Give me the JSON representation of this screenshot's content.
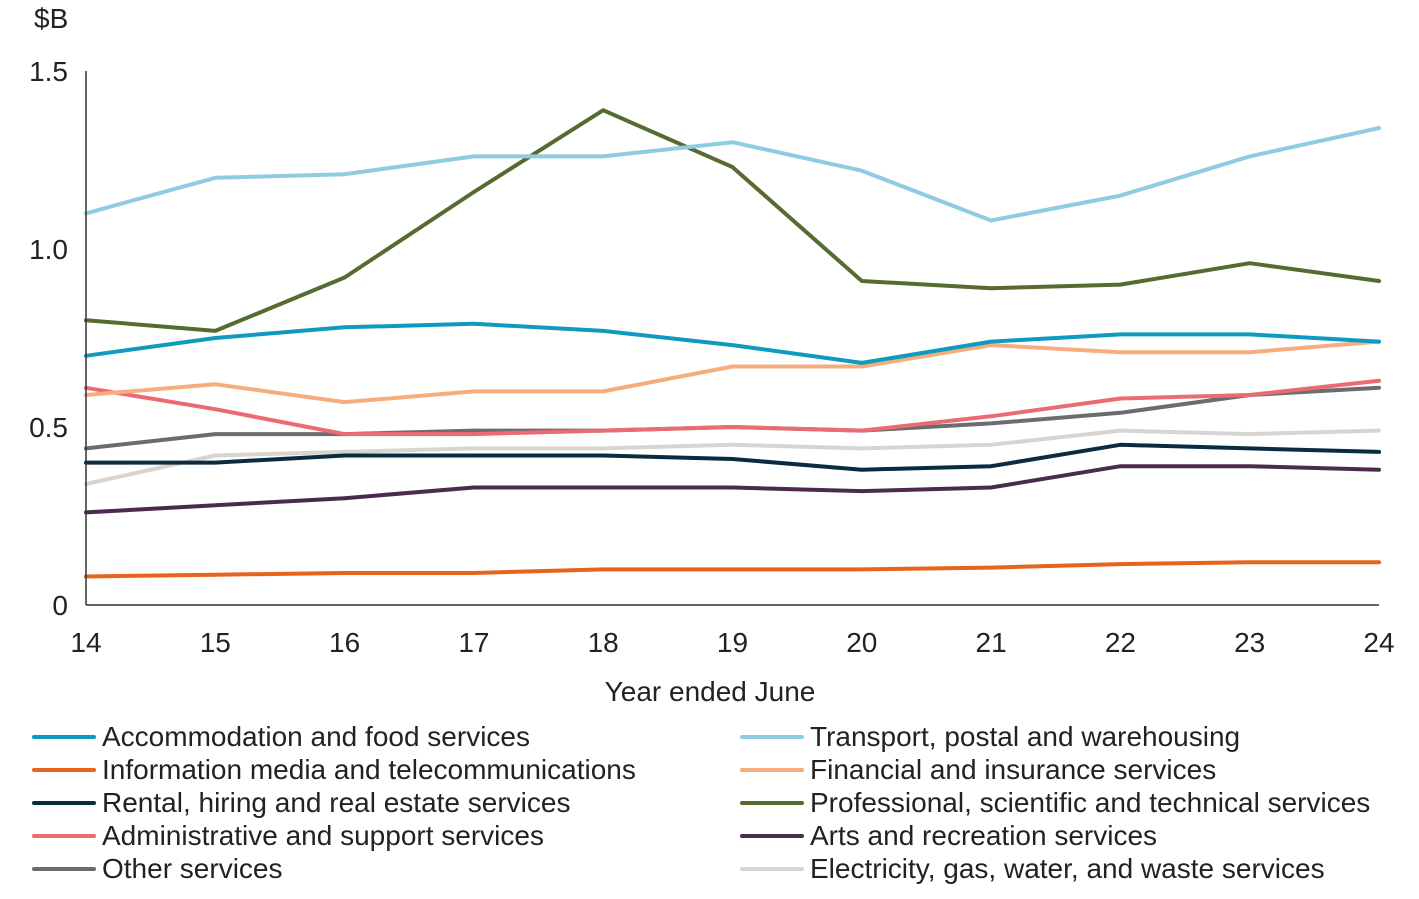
{
  "chart_data": {
    "type": "line",
    "ylabel": "$B",
    "xlabel": "Year ended June",
    "x": [
      "14",
      "15",
      "16",
      "17",
      "18",
      "19",
      "20",
      "21",
      "22",
      "23",
      "24"
    ],
    "ylim": [
      0,
      1.5
    ],
    "yticks": [
      "0",
      "0.5",
      "1.0",
      "1.5"
    ],
    "legend_placement": "bottom",
    "grid": false,
    "series": [
      {
        "name": "Accommodation and food services",
        "color": "#0e9bbf",
        "values": [
          0.7,
          0.75,
          0.78,
          0.79,
          0.77,
          0.73,
          0.68,
          0.74,
          0.76,
          0.76,
          0.74
        ]
      },
      {
        "name": "Transport, postal and warehousing",
        "color": "#8fcbe3",
        "values": [
          1.1,
          1.2,
          1.21,
          1.26,
          1.26,
          1.3,
          1.22,
          1.08,
          1.15,
          1.26,
          1.34
        ]
      },
      {
        "name": "Information media and telecommunications",
        "color": "#e8631e",
        "values": [
          0.08,
          0.085,
          0.09,
          0.09,
          0.1,
          0.1,
          0.1,
          0.105,
          0.115,
          0.12,
          0.12
        ]
      },
      {
        "name": "Financial and insurance services",
        "color": "#f5ad7e",
        "values": [
          0.59,
          0.62,
          0.57,
          0.6,
          0.6,
          0.67,
          0.67,
          0.73,
          0.71,
          0.71,
          0.74
        ]
      },
      {
        "name": "Rental, hiring and real estate services",
        "color": "#0b2b40",
        "values": [
          0.4,
          0.4,
          0.42,
          0.42,
          0.42,
          0.41,
          0.38,
          0.39,
          0.45,
          0.44,
          0.43
        ]
      },
      {
        "name": "Professional, scientific and technical services",
        "color": "#556b2f",
        "values": [
          0.8,
          0.77,
          0.92,
          1.16,
          1.39,
          1.23,
          0.91,
          0.89,
          0.9,
          0.96,
          0.91
        ]
      },
      {
        "name": "Administrative and support services",
        "color": "#ec6b73",
        "values": [
          0.61,
          0.55,
          0.48,
          0.48,
          0.49,
          0.5,
          0.49,
          0.53,
          0.58,
          0.59,
          0.63
        ]
      },
      {
        "name": "Arts and recreation services",
        "color": "#4a2a4d",
        "values": [
          0.26,
          0.28,
          0.3,
          0.33,
          0.33,
          0.33,
          0.32,
          0.33,
          0.39,
          0.39,
          0.38
        ]
      },
      {
        "name": "Other services",
        "color": "#6b6b72",
        "values": [
          0.44,
          0.48,
          0.48,
          0.49,
          0.49,
          0.5,
          0.49,
          0.51,
          0.54,
          0.59,
          0.61
        ]
      },
      {
        "name": "Electricity, gas, water, and waste services",
        "color": "#d9d4d0",
        "values": [
          0.34,
          0.42,
          0.43,
          0.44,
          0.44,
          0.45,
          0.44,
          0.45,
          0.49,
          0.48,
          0.49
        ]
      }
    ]
  }
}
